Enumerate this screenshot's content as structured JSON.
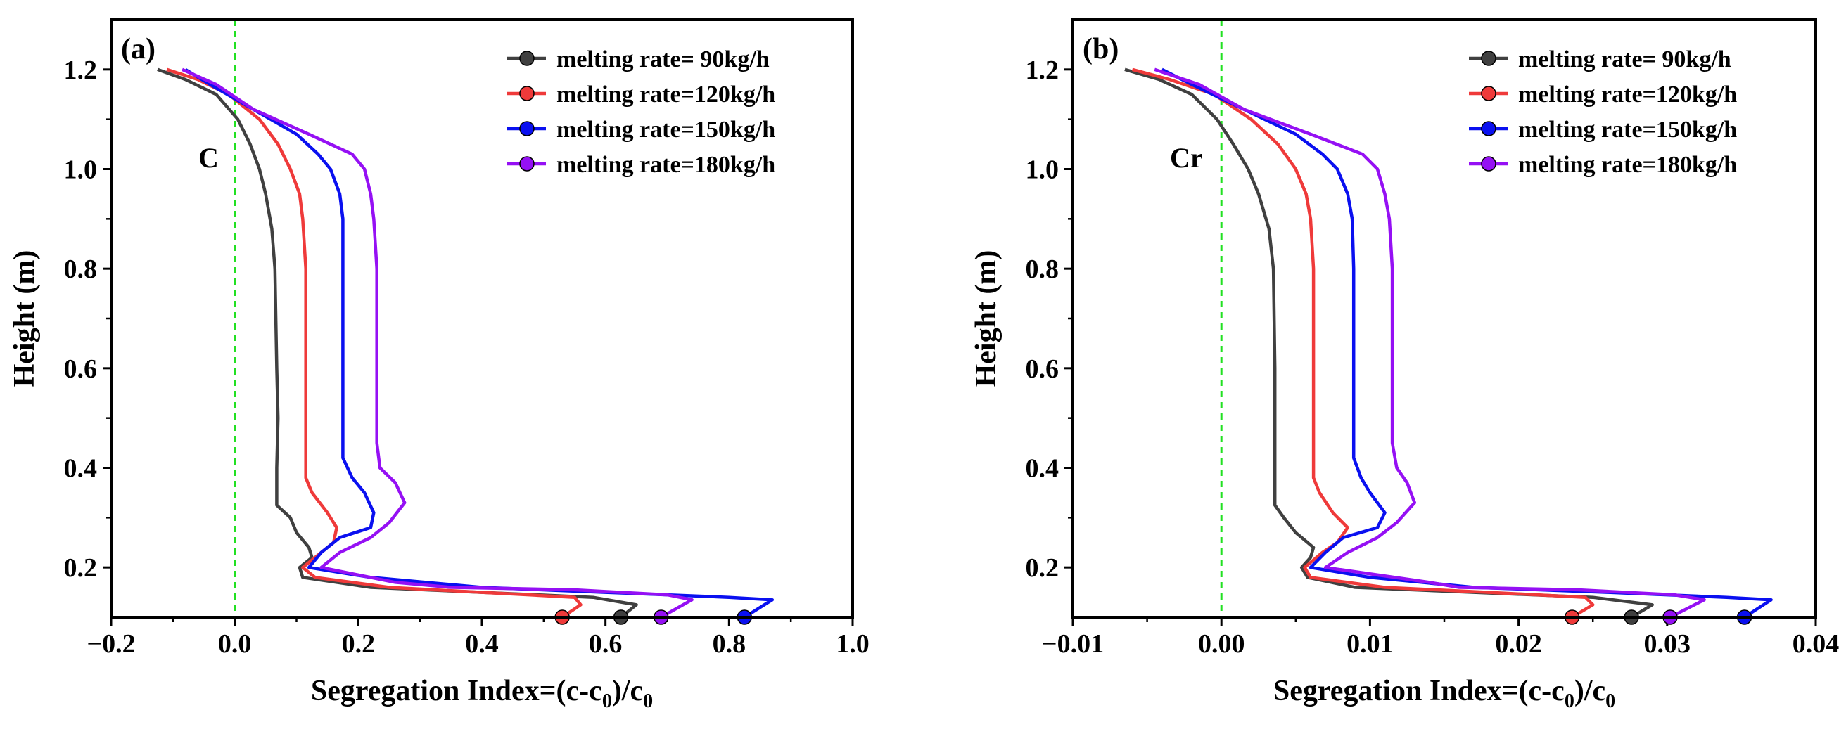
{
  "figure": {
    "colors": {
      "series": [
        "#404040",
        "#ef3a3a",
        "#0a10f0",
        "#9510f4"
      ],
      "reference_line": "#22e022"
    }
  },
  "chart_data": [
    {
      "type": "line",
      "panel_label": "(a)",
      "element_label": "C",
      "xlabel_main": "Segregation Index=(c-c",
      "xlabel_sub": "0",
      "xlabel_mid": ")/c",
      "ylabel": "Height (m)",
      "xlim": [
        -0.2,
        1.0
      ],
      "ylim": [
        0.1,
        1.3
      ],
      "xticks": [
        -0.2,
        0.0,
        0.2,
        0.4,
        0.6,
        0.8,
        1.0
      ],
      "xtick_labels": [
        "−0.2",
        "0.0",
        "0.2",
        "0.4",
        "0.6",
        "0.8",
        "1.0"
      ],
      "yticks": [
        0.2,
        0.4,
        0.6,
        0.8,
        1.0,
        1.2
      ],
      "ytick_labels": [
        "0.2",
        "0.4",
        "0.6",
        "0.8",
        "1.0",
        "1.2"
      ],
      "reference_line_x": 0.0,
      "legend_position": "top-right",
      "series": [
        {
          "name": "melting rate= 90kg/h",
          "marker": [
            0.625,
            0.1
          ],
          "x": [
            0.625,
            0.65,
            0.58,
            0.4,
            0.22,
            0.11,
            0.105,
            0.125,
            0.12,
            0.1,
            0.09,
            0.068,
            0.068,
            0.07,
            0.068,
            0.065,
            0.06,
            0.05,
            0.04,
            0.025,
            0.005,
            -0.03,
            -0.08,
            -0.125
          ],
          "y": [
            0.1,
            0.125,
            0.14,
            0.15,
            0.16,
            0.18,
            0.2,
            0.22,
            0.24,
            0.27,
            0.3,
            0.325,
            0.4,
            0.5,
            0.6,
            0.8,
            0.88,
            0.95,
            1.0,
            1.05,
            1.1,
            1.15,
            1.18,
            1.2
          ]
        },
        {
          "name": "melting rate=120kg/h",
          "marker": [
            0.53,
            0.1
          ],
          "x": [
            0.53,
            0.56,
            0.55,
            0.4,
            0.25,
            0.13,
            0.11,
            0.14,
            0.16,
            0.165,
            0.15,
            0.125,
            0.115,
            0.115,
            0.115,
            0.115,
            0.11,
            0.105,
            0.09,
            0.07,
            0.04,
            -0.01,
            -0.06,
            -0.11
          ],
          "y": [
            0.1,
            0.125,
            0.14,
            0.15,
            0.16,
            0.18,
            0.2,
            0.23,
            0.25,
            0.28,
            0.31,
            0.35,
            0.38,
            0.4,
            0.6,
            0.8,
            0.9,
            0.95,
            1.0,
            1.05,
            1.1,
            1.15,
            1.18,
            1.2
          ]
        },
        {
          "name": "melting rate=150kg/h",
          "marker": [
            0.825,
            0.1
          ],
          "x": [
            0.825,
            0.87,
            0.8,
            0.6,
            0.4,
            0.22,
            0.12,
            0.14,
            0.17,
            0.22,
            0.225,
            0.21,
            0.19,
            0.175,
            0.175,
            0.175,
            0.175,
            0.17,
            0.155,
            0.135,
            0.1,
            0.03,
            -0.04,
            -0.08
          ],
          "y": [
            0.1,
            0.135,
            0.14,
            0.15,
            0.16,
            0.18,
            0.2,
            0.23,
            0.26,
            0.28,
            0.31,
            0.35,
            0.38,
            0.42,
            0.6,
            0.8,
            0.9,
            0.95,
            1.0,
            1.03,
            1.07,
            1.12,
            1.17,
            1.2
          ]
        },
        {
          "name": "melting rate=180kg/h",
          "marker": [
            0.69,
            0.1
          ],
          "x": [
            0.69,
            0.74,
            0.7,
            0.55,
            0.35,
            0.26,
            0.14,
            0.17,
            0.22,
            0.25,
            0.275,
            0.26,
            0.235,
            0.23,
            0.23,
            0.23,
            0.225,
            0.22,
            0.21,
            0.19,
            0.12,
            0.03,
            -0.03,
            -0.085
          ],
          "y": [
            0.1,
            0.135,
            0.145,
            0.155,
            0.16,
            0.17,
            0.2,
            0.23,
            0.26,
            0.29,
            0.33,
            0.37,
            0.4,
            0.45,
            0.6,
            0.8,
            0.9,
            0.95,
            1.0,
            1.03,
            1.07,
            1.12,
            1.17,
            1.2
          ]
        }
      ]
    },
    {
      "type": "line",
      "panel_label": "(b)",
      "element_label": "Cr",
      "xlabel_main": "Segregation Index=(c-c",
      "xlabel_sub": "0",
      "xlabel_mid": ")/c",
      "ylabel": "Height (m)",
      "xlim": [
        -0.01,
        0.04
      ],
      "ylim": [
        0.1,
        1.3
      ],
      "xticks": [
        -0.01,
        0.0,
        0.01,
        0.02,
        0.03,
        0.04
      ],
      "xtick_labels": [
        "−0.01",
        "0.00",
        "0.01",
        "0.02",
        "0.03",
        "0.04"
      ],
      "yticks": [
        0.2,
        0.4,
        0.6,
        0.8,
        1.0,
        1.2
      ],
      "ytick_labels": [
        "0.2",
        "0.4",
        "0.6",
        "0.8",
        "1.0",
        "1.2"
      ],
      "reference_line_x": 0.0,
      "legend_position": "top-right",
      "series": [
        {
          "name": "melting rate= 90kg/h",
          "marker": [
            0.0276,
            0.1
          ],
          "x": [
            0.0276,
            0.029,
            0.025,
            0.017,
            0.009,
            0.0058,
            0.0054,
            0.006,
            0.0062,
            0.005,
            0.0042,
            0.0036,
            0.0036,
            0.0036,
            0.0036,
            0.0035,
            0.0032,
            0.0025,
            0.0018,
            0.0008,
            -0.0003,
            -0.002,
            -0.0042,
            -0.0065
          ],
          "y": [
            0.1,
            0.125,
            0.14,
            0.15,
            0.16,
            0.18,
            0.2,
            0.22,
            0.24,
            0.27,
            0.3,
            0.325,
            0.4,
            0.5,
            0.6,
            0.8,
            0.88,
            0.95,
            1.0,
            1.05,
            1.1,
            1.15,
            1.18,
            1.2
          ]
        },
        {
          "name": "melting rate=120kg/h",
          "marker": [
            0.0236,
            0.1
          ],
          "x": [
            0.0236,
            0.025,
            0.0245,
            0.018,
            0.011,
            0.006,
            0.0056,
            0.0068,
            0.0078,
            0.0085,
            0.0075,
            0.0066,
            0.0062,
            0.0062,
            0.0062,
            0.0062,
            0.006,
            0.0057,
            0.005,
            0.0038,
            0.002,
            -0.0005,
            -0.0035,
            -0.006
          ],
          "y": [
            0.1,
            0.125,
            0.14,
            0.15,
            0.16,
            0.18,
            0.2,
            0.23,
            0.25,
            0.28,
            0.31,
            0.35,
            0.38,
            0.4,
            0.6,
            0.8,
            0.9,
            0.95,
            1.0,
            1.05,
            1.1,
            1.15,
            1.18,
            1.2
          ]
        },
        {
          "name": "melting rate=150kg/h",
          "marker": [
            0.0352,
            0.1
          ],
          "x": [
            0.0352,
            0.037,
            0.034,
            0.026,
            0.017,
            0.01,
            0.006,
            0.007,
            0.0082,
            0.0105,
            0.011,
            0.01,
            0.0094,
            0.0089,
            0.0089,
            0.0089,
            0.0088,
            0.0085,
            0.0078,
            0.0068,
            0.005,
            0.0015,
            -0.002,
            -0.004
          ],
          "y": [
            0.1,
            0.135,
            0.14,
            0.15,
            0.16,
            0.18,
            0.2,
            0.23,
            0.26,
            0.28,
            0.31,
            0.35,
            0.38,
            0.42,
            0.6,
            0.8,
            0.9,
            0.95,
            1.0,
            1.03,
            1.07,
            1.12,
            1.17,
            1.2
          ]
        },
        {
          "name": "melting rate=180kg/h",
          "marker": [
            0.0302,
            0.1
          ],
          "x": [
            0.0302,
            0.0325,
            0.0305,
            0.024,
            0.016,
            0.014,
            0.007,
            0.0085,
            0.0105,
            0.0118,
            0.013,
            0.0125,
            0.0118,
            0.0115,
            0.0115,
            0.0115,
            0.0113,
            0.011,
            0.0105,
            0.0095,
            0.006,
            0.0015,
            -0.0015,
            -0.0045
          ],
          "y": [
            0.1,
            0.135,
            0.145,
            0.155,
            0.16,
            0.17,
            0.2,
            0.23,
            0.26,
            0.29,
            0.33,
            0.37,
            0.4,
            0.45,
            0.6,
            0.8,
            0.9,
            0.95,
            1.0,
            1.03,
            1.07,
            1.12,
            1.17,
            1.2
          ]
        }
      ]
    }
  ]
}
